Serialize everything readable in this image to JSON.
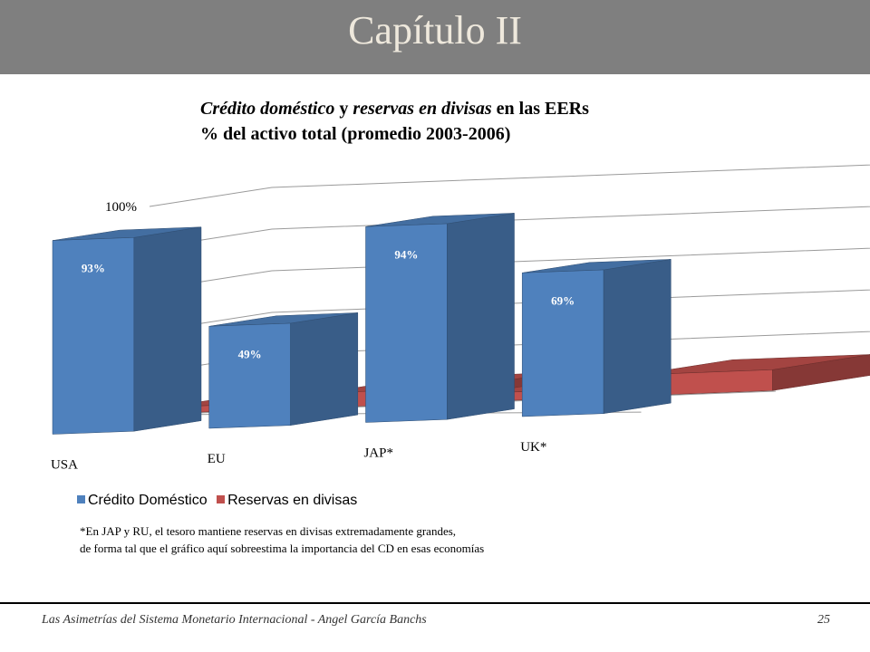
{
  "header": {
    "title": "Capítulo II"
  },
  "chart_title": {
    "line1_part1": "Crédito doméstico",
    "line1_part2": " y ",
    "line1_part3": "reservas en divisas",
    "line1_part4": " en las EERs",
    "line2": "% del activo total (promedio 2003-2006)"
  },
  "chart_data": {
    "type": "bar",
    "categories": [
      "USA",
      "EU",
      "JAP*",
      "UK*"
    ],
    "series": [
      {
        "name": "Crédito Doméstico",
        "values": [
          93,
          49,
          94,
          69
        ],
        "color": "#4f81bd"
      },
      {
        "name": "Reservas en divisas",
        "values": [
          3,
          7,
          4,
          10
        ],
        "color": "#c0504d"
      }
    ],
    "data_labels": [
      "93%",
      "49%",
      "94%",
      "69%"
    ],
    "y_ticks": [
      "0%",
      "20%",
      "40%",
      "60%",
      "80%",
      "100%"
    ],
    "ylim": [
      0,
      100
    ],
    "grid": true,
    "legend_position": "bottom-left",
    "view": "3d-column"
  },
  "legend": {
    "item1": "Crédito Doméstico",
    "item2": "Reservas en divisas"
  },
  "footnote": {
    "line1": "*En JAP y RU, el tesoro mantiene reservas en divisas extremadamente grandes,",
    "line2": "de forma tal que el gráfico aquí sobreestima la importancia del CD en esas economías"
  },
  "footer": {
    "text": "Las Asimetrías del Sistema Monetario Internacional - Angel García Banchs",
    "page": "25"
  }
}
